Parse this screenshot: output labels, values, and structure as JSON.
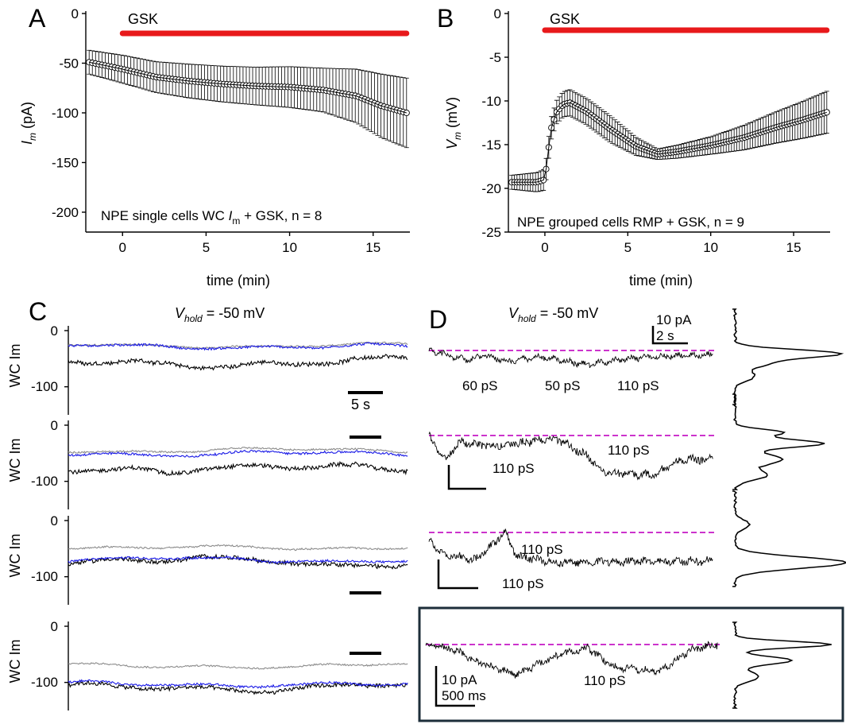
{
  "colors": {
    "drug_bar": "#e8191b",
    "trace_black": "#000000",
    "trace_blue": "#1a1ae6",
    "trace_gray": "#8c8c8c",
    "baseline": "#cc33cc",
    "frame": "#1d2e3a"
  },
  "chart_data": [
    {
      "panel": "A",
      "type": "scatter",
      "title": "",
      "annotation": "NPE single cells WC Im + GSK, n = 8",
      "annotation_parts": [
        "NPE single cells WC ",
        "I",
        "m",
        " + GSK, n = 8"
      ],
      "xlabel": "time (min)",
      "ylabel": "Im (pA)",
      "ylabel_parts": [
        "I",
        "m",
        " (pA)"
      ],
      "xlim": [
        -2.2,
        17.2
      ],
      "ylim": [
        -220,
        0
      ],
      "xticks": [
        0,
        5,
        10,
        15
      ],
      "yticks": [
        0,
        -50,
        -100,
        -150,
        -200
      ],
      "drug_label": "GSK",
      "drug_bar": [
        0,
        17
      ],
      "points": [
        [
          -2,
          -49
        ],
        [
          0,
          -56
        ],
        [
          2,
          -64
        ],
        [
          4,
          -68
        ],
        [
          6,
          -71
        ],
        [
          8,
          -73
        ],
        [
          10,
          -74
        ],
        [
          12,
          -77
        ],
        [
          14,
          -83
        ],
        [
          15.5,
          -93
        ],
        [
          17,
          -100
        ]
      ],
      "error": [
        [
          -2,
          12
        ],
        [
          0,
          14
        ],
        [
          4,
          17
        ],
        [
          8,
          19
        ],
        [
          12,
          22
        ],
        [
          14,
          27
        ],
        [
          15.5,
          32
        ],
        [
          17,
          35
        ]
      ]
    },
    {
      "panel": "B",
      "type": "scatter",
      "title": "",
      "annotation": "NPE grouped cells RMP + GSK, n = 9",
      "xlabel": "time (min)",
      "ylabel": "Vm (mV)",
      "ylabel_parts": [
        "V",
        "m",
        " (mV)"
      ],
      "xlim": [
        -2.2,
        17.2
      ],
      "ylim": [
        -25,
        0
      ],
      "xticks": [
        0,
        5,
        10,
        15
      ],
      "yticks": [
        0,
        -5,
        -10,
        -15,
        -20,
        -25
      ],
      "drug_label": "GSK",
      "drug_bar": [
        0,
        17
      ],
      "points": [
        [
          -2,
          -19.3
        ],
        [
          -0.5,
          -19.3
        ],
        [
          0,
          -19
        ],
        [
          0.2,
          -15.8
        ],
        [
          0.4,
          -13
        ],
        [
          0.7,
          -11.3
        ],
        [
          1.1,
          -10.4
        ],
        [
          1.5,
          -10.2
        ],
        [
          2.5,
          -11.2
        ],
        [
          4,
          -13.3
        ],
        [
          5.5,
          -15.2
        ],
        [
          6.8,
          -16.1
        ],
        [
          8,
          -15.8
        ],
        [
          10,
          -15.1
        ],
        [
          12,
          -14.2
        ],
        [
          14,
          -13
        ],
        [
          15.5,
          -12.2
        ],
        [
          17,
          -11.3
        ]
      ],
      "error": [
        [
          -2,
          0.8
        ],
        [
          0,
          1.2
        ],
        [
          1.5,
          1.5
        ],
        [
          4,
          1.5
        ],
        [
          6.8,
          0.6
        ],
        [
          10,
          1.0
        ],
        [
          14,
          1.8
        ],
        [
          17,
          2.4
        ]
      ]
    },
    {
      "panel": "C",
      "type": "line",
      "title": "Vhold = -50 mV",
      "title_parts": [
        "V",
        "hold",
        " = -50 mV"
      ],
      "ylabel": "WC Im",
      "yticks": [
        0,
        -100
      ],
      "scale_bar": "5 s",
      "rows": [
        {
          "ylim": [
            -150,
            0
          ],
          "black": -57,
          "blue": -28,
          "gray": -27
        },
        {
          "ylim": [
            -150,
            0
          ],
          "black": -75,
          "blue": -50,
          "gray": -46
        },
        {
          "ylim": [
            -150,
            0
          ],
          "black": -72,
          "blue": -70,
          "gray": -48
        },
        {
          "ylim": [
            -150,
            0
          ],
          "black": -110,
          "blue": -103,
          "gray": -70
        }
      ]
    },
    {
      "panel": "D",
      "type": "line",
      "title": "Vhold = -50 mV",
      "title_parts": [
        "V",
        "hold",
        " = -50 mV"
      ],
      "scale_current": "10 pA",
      "scale_time": "2 s",
      "scale_current_inset": "10 pA",
      "scale_time_inset": "500 ms",
      "row_labels": [
        [
          "60 pS",
          "50 pS",
          "110 pS"
        ],
        [
          "110 pS",
          "110 pS"
        ],
        [
          "110 pS",
          "110 pS"
        ],
        [
          "110 pS"
        ]
      ]
    }
  ]
}
